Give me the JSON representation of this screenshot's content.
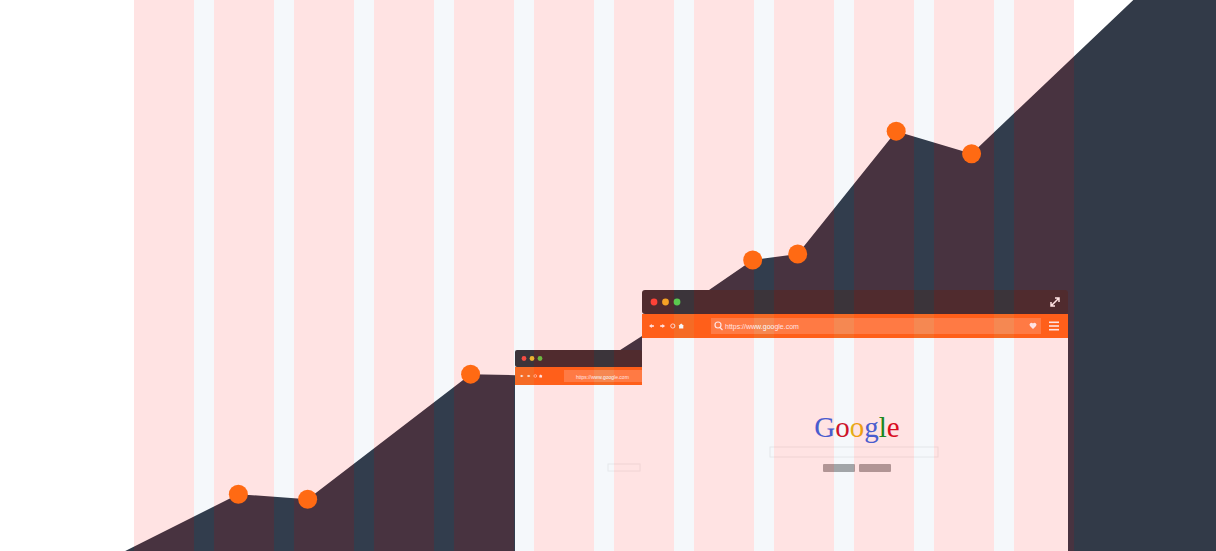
{
  "chart_data": {
    "type": "area",
    "series": [
      {
        "type": "area",
        "color": "#323a48",
        "x": [
          10.3,
          19.6,
          25.3,
          38.7,
          42.4,
          51.0,
          52.8,
          61.9,
          65.6,
          73.7,
          79.9,
          93.2,
          100
        ],
        "values": [
          0,
          10.3,
          9.4,
          32.1,
          31.9,
          36.5,
          39.0,
          52.8,
          53.9,
          76.2,
          72.1,
          100,
          100
        ]
      },
      {
        "type": "scatter",
        "color": "#ff6a13",
        "marker": "circle",
        "x": [
          19.6,
          25.3,
          38.7,
          61.9,
          65.6,
          73.7,
          79.9
        ],
        "values": [
          10.3,
          9.4,
          32.1,
          52.8,
          53.9,
          76.2,
          72.1
        ]
      }
    ],
    "xlim": [
      0,
      100
    ],
    "ylim": [
      0,
      100
    ],
    "tick_labels": false,
    "grid": false
  },
  "browser_windows": [
    {
      "url": "https://www.google.com"
    },
    {
      "url": "https://www.google.com",
      "logo": "Google"
    }
  ]
}
